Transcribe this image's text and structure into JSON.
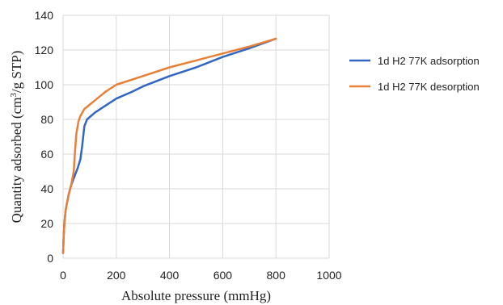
{
  "chart_data": {
    "type": "line",
    "title": "",
    "xlabel": "Absolute pressure (mmHg)",
    "ylabel_parts": {
      "before": "Quantity adsorbed (cm",
      "sup": "3",
      "after": "/g STP)"
    },
    "xlim": [
      0,
      1000
    ],
    "ylim": [
      0,
      140
    ],
    "x_ticks": [
      0,
      200,
      400,
      600,
      800,
      1000
    ],
    "y_ticks": [
      0,
      20,
      40,
      60,
      80,
      100,
      120,
      140
    ],
    "grid": true,
    "legend_position": "right",
    "series": [
      {
        "name": "1d H2 77K adsorption",
        "color": "#3366c2",
        "points": [
          [
            0,
            3
          ],
          [
            2,
            12
          ],
          [
            5,
            20
          ],
          [
            10,
            28
          ],
          [
            20,
            36
          ],
          [
            30,
            42
          ],
          [
            45,
            48
          ],
          [
            55,
            52
          ],
          [
            65,
            57
          ],
          [
            72,
            65
          ],
          [
            80,
            76
          ],
          [
            90,
            80
          ],
          [
            120,
            84
          ],
          [
            160,
            88
          ],
          [
            200,
            92
          ],
          [
            260,
            96
          ],
          [
            300,
            99
          ],
          [
            400,
            105
          ],
          [
            500,
            110
          ],
          [
            600,
            116
          ],
          [
            700,
            121
          ],
          [
            800,
            126.5
          ]
        ]
      },
      {
        "name": "1d H2 77K desorption",
        "color": "#e8803a",
        "points": [
          [
            0,
            3
          ],
          [
            2,
            12
          ],
          [
            5,
            20
          ],
          [
            10,
            28
          ],
          [
            20,
            36
          ],
          [
            30,
            42
          ],
          [
            40,
            50
          ],
          [
            45,
            62
          ],
          [
            50,
            72
          ],
          [
            58,
            79
          ],
          [
            65,
            82
          ],
          [
            80,
            86
          ],
          [
            120,
            91
          ],
          [
            160,
            96
          ],
          [
            200,
            100
          ],
          [
            300,
            105
          ],
          [
            400,
            110
          ],
          [
            500,
            114
          ],
          [
            600,
            118
          ],
          [
            700,
            122
          ],
          [
            800,
            126.5
          ]
        ]
      }
    ]
  }
}
